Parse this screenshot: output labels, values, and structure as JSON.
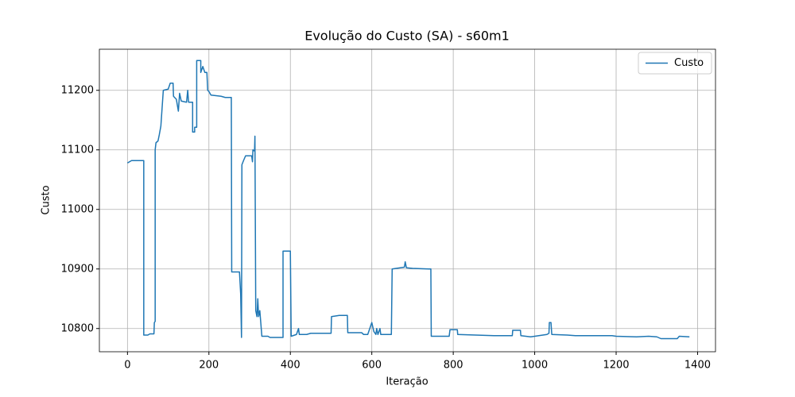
{
  "chart_data": {
    "type": "line",
    "title": "Evolução do Custo (SA) - s60m1",
    "x_label": "Iteração",
    "y_label": "Custo",
    "x": [
      0,
      5,
      10,
      40,
      40,
      50,
      55,
      65,
      66,
      68,
      68,
      70,
      75,
      78,
      82,
      85,
      88,
      100,
      105,
      112,
      113,
      120,
      125,
      128,
      132,
      145,
      148,
      150,
      160,
      160,
      165,
      165,
      170,
      170,
      180,
      180,
      185,
      190,
      195,
      197,
      200,
      205,
      230,
      240,
      255,
      256,
      275,
      278,
      280,
      281,
      285,
      290,
      305,
      307,
      308,
      312,
      313,
      315,
      318,
      320,
      322,
      325,
      330,
      345,
      350,
      370,
      382,
      382,
      400,
      402,
      415,
      420,
      422,
      440,
      450,
      500,
      501,
      520,
      540,
      541,
      575,
      580,
      590,
      595,
      600,
      605,
      610,
      612,
      615,
      620,
      622,
      640,
      648,
      650,
      670,
      680,
      682,
      685,
      700,
      740,
      745,
      746,
      770,
      790,
      792,
      810,
      811,
      900,
      945,
      946,
      965,
      966,
      990,
      1030,
      1035,
      1036,
      1040,
      1042,
      1080,
      1100,
      1150,
      1190,
      1200,
      1250,
      1280,
      1300,
      1310,
      1350,
      1355,
      1380
    ],
    "series": [
      {
        "name": "Custo",
        "color": "#1f77b4",
        "values": [
          11078,
          11080,
          11082,
          11082,
          10789,
          10789,
          10791,
          10791,
          10810,
          10812,
          11100,
          11112,
          11115,
          11125,
          11140,
          11170,
          11200,
          11202,
          11212,
          11212,
          11190,
          11185,
          11165,
          11195,
          11182,
          11180,
          11200,
          11180,
          11180,
          11130,
          11130,
          11138,
          11138,
          11250,
          11250,
          11230,
          11240,
          11230,
          11230,
          11200,
          11198,
          11192,
          11190,
          11188,
          11188,
          10895,
          10895,
          10858,
          10785,
          11075,
          11082,
          11090,
          11090,
          11080,
          11100,
          11098,
          11123,
          10830,
          10820,
          10850,
          10820,
          10830,
          10787,
          10787,
          10785,
          10785,
          10785,
          10930,
          10930,
          10787,
          10790,
          10800,
          10790,
          10790,
          10792,
          10792,
          10820,
          10822,
          10822,
          10793,
          10793,
          10790,
          10790,
          10800,
          10810,
          10795,
          10790,
          10800,
          10790,
          10800,
          10790,
          10790,
          10790,
          10900,
          10902,
          10903,
          10912,
          10902,
          10901,
          10900,
          10900,
          10787,
          10787,
          10787,
          10798,
          10798,
          10790,
          10788,
          10788,
          10797,
          10797,
          10788,
          10786,
          10790,
          10792,
          10810,
          10810,
          10790,
          10789,
          10788,
          10788,
          10788,
          10787,
          10786,
          10787,
          10786,
          10783,
          10783,
          10787,
          10786
        ]
      }
    ],
    "xlim": [
      -69,
      1444
    ],
    "ylim": [
      10761,
      11269
    ],
    "xticks": [
      0,
      200,
      400,
      600,
      800,
      1000,
      1200,
      1400
    ],
    "yticks": [
      10800,
      10900,
      11000,
      11100,
      11200
    ],
    "grid": true,
    "legend": "upper right"
  }
}
